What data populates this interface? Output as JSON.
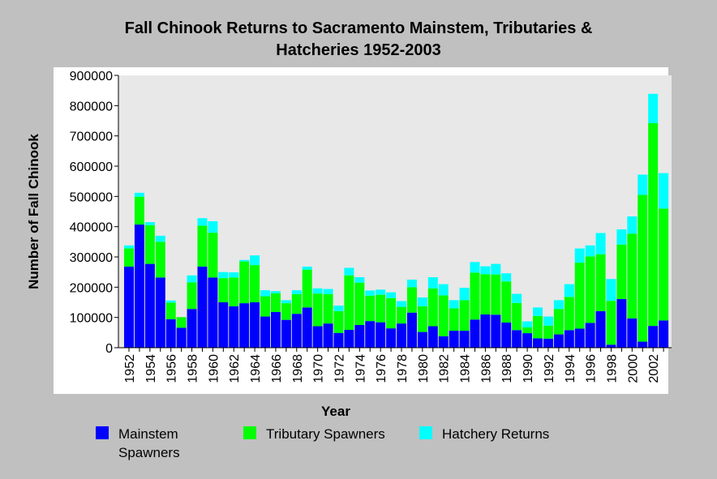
{
  "chart_data": {
    "type": "bar",
    "stacked": true,
    "title": "Fall Chinook Returns to Sacramento Mainstem, Tributaries & Hatcheries 1952-2003",
    "title_lines": [
      "Fall Chinook Returns to Sacramento Mainstem, Tributaries &",
      "Hatcheries 1952-2003"
    ],
    "xlabel": "Year",
    "ylabel": "Number of Fall Chinook",
    "ylim": [
      0,
      900000
    ],
    "yticks": [
      "900000",
      "800000",
      "700000",
      "600000",
      "500000",
      "400000",
      "300000",
      "200000",
      "100000",
      "0"
    ],
    "xtick_labels": [
      "1952",
      "1954",
      "1956",
      "1958",
      "1960",
      "1962",
      "1964",
      "1966",
      "1968",
      "1970",
      "1972",
      "1974",
      "1976",
      "1978",
      "1980",
      "1982",
      "1984",
      "1986",
      "1988",
      "1990",
      "1992",
      "1994",
      "1996",
      "1998",
      "2000",
      "2002"
    ],
    "grid": false,
    "legend_position": "bottom",
    "categories": [
      1952,
      1953,
      1954,
      1955,
      1956,
      1957,
      1958,
      1959,
      1960,
      1961,
      1962,
      1963,
      1964,
      1965,
      1966,
      1967,
      1968,
      1969,
      1970,
      1971,
      1972,
      1973,
      1974,
      1975,
      1976,
      1977,
      1978,
      1979,
      1980,
      1981,
      1982,
      1983,
      1984,
      1985,
      1986,
      1987,
      1988,
      1989,
      1990,
      1991,
      1992,
      1993,
      1994,
      1995,
      1996,
      1997,
      1998,
      1999,
      2000,
      2001,
      2002,
      2003
    ],
    "series": [
      {
        "name": "Mainstem Spawners",
        "label_lines": [
          "Mainstem",
          "Spawners"
        ],
        "color": "#0000ff",
        "values": [
          268000,
          407000,
          277000,
          232000,
          94000,
          66000,
          128000,
          268000,
          232000,
          150000,
          137000,
          147000,
          150000,
          103000,
          118000,
          92000,
          112000,
          133000,
          71000,
          80000,
          49000,
          59000,
          75000,
          88000,
          84000,
          64000,
          80000,
          116000,
          52000,
          71000,
          38000,
          56000,
          56000,
          93000,
          110000,
          109000,
          83000,
          58000,
          48000,
          31000,
          30000,
          44000,
          58000,
          63000,
          82000,
          121000,
          10000,
          161000,
          97000,
          20000,
          72000,
          90000
        ]
      },
      {
        "name": "Tributary Spawners",
        "label_lines": [
          "Tributary Spawners"
        ],
        "color": "#00ff00",
        "values": [
          60000,
          92000,
          128000,
          118000,
          55000,
          35000,
          88000,
          135000,
          148000,
          80000,
          95000,
          138000,
          123000,
          67000,
          62000,
          55000,
          65000,
          125000,
          108000,
          97000,
          72000,
          180000,
          140000,
          84000,
          91000,
          100000,
          55000,
          84000,
          85000,
          125000,
          135000,
          74000,
          101000,
          155000,
          133000,
          133000,
          136000,
          90000,
          19000,
          74000,
          43000,
          84000,
          110000,
          218000,
          220000,
          188000,
          145000,
          180000,
          280000,
          485000,
          670000,
          370000
        ]
      },
      {
        "name": "Hatchery Returns",
        "label_lines": [
          "Hatchery Returns"
        ],
        "color": "#00ffff",
        "values": [
          10000,
          13000,
          10000,
          20000,
          7000,
          0,
          23000,
          25000,
          38000,
          20000,
          17000,
          5000,
          32000,
          20000,
          7000,
          10000,
          13000,
          10000,
          17000,
          17000,
          18000,
          25000,
          18000,
          17000,
          17000,
          19000,
          19000,
          25000,
          29000,
          37000,
          37000,
          27000,
          41000,
          35000,
          26000,
          35000,
          27000,
          30000,
          20000,
          28000,
          30000,
          29000,
          42000,
          47000,
          36000,
          70000,
          72000,
          50000,
          57000,
          67000,
          97000,
          117000
        ]
      }
    ]
  }
}
